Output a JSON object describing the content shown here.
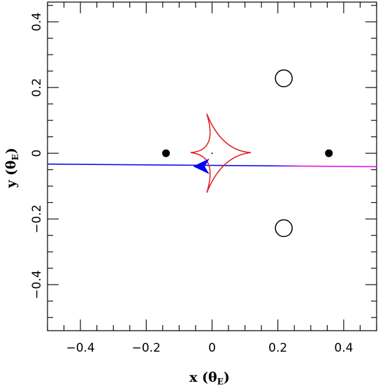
{
  "chart_data": {
    "type": "scatter",
    "x_label_main": "x (θ",
    "x_label_sub": "E",
    "x_label_close": ")",
    "y_label_main": "y (θ",
    "y_label_sub": "E",
    "y_label_close": ")",
    "xlim": [
      -0.5,
      0.5
    ],
    "ylim": [
      -0.54,
      0.46
    ],
    "x_ticks": [
      -0.4,
      -0.2,
      0,
      0.2,
      0.4
    ],
    "x_tick_labels": [
      "−0.4",
      "−0.2",
      "0",
      "0.2",
      "0.4"
    ],
    "y_ticks": [
      -0.4,
      -0.2,
      0,
      0.2,
      0.4
    ],
    "y_tick_labels": [
      "−0.4",
      "−0.2",
      "0",
      "0.2",
      "0.4"
    ],
    "grid": false,
    "lens_masses": [
      {
        "x": -0.14,
        "y": 0.0
      },
      {
        "x": 0.355,
        "y": 0.0
      }
    ],
    "images": [
      {
        "x": 0.218,
        "y": 0.228
      },
      {
        "x": 0.218,
        "y": -0.228
      }
    ],
    "center_point": {
      "x": 0.0,
      "y": 0.0
    },
    "caustic": {
      "cusps": [
        {
          "x": -0.065,
          "y": 0.002
        },
        {
          "x": -0.016,
          "y": 0.12
        },
        {
          "x": 0.118,
          "y": 0.002
        },
        {
          "x": -0.016,
          "y": -0.12
        }
      ],
      "color": "#e31a1c"
    },
    "trajectory": {
      "x": [
        -0.5,
        0.5
      ],
      "y": [
        -0.033,
        -0.041
      ],
      "color": "#1010ee",
      "end_color": "#ee10ee"
    },
    "arrow": {
      "x": -0.015,
      "y": -0.04,
      "dx": -0.04,
      "color": "#0000ff"
    }
  }
}
